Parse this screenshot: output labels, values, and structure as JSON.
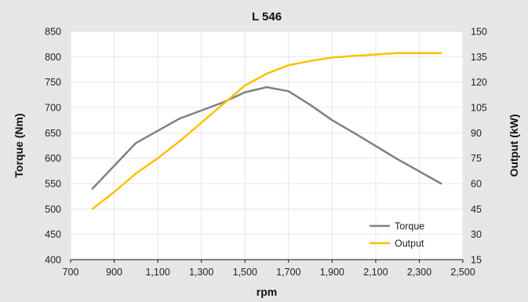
{
  "chart_data": {
    "type": "line",
    "title": "L 546",
    "xlabel": "rpm",
    "ylabel": "Torque (Nm)",
    "y2label": "Output (kW)",
    "xlim": [
      700,
      2500
    ],
    "ylim": [
      400,
      850
    ],
    "y2lim": [
      15,
      150
    ],
    "xticks": [
      700,
      900,
      1100,
      1300,
      1500,
      1700,
      1900,
      2100,
      2300,
      2500
    ],
    "xtick_labels": [
      "700",
      "900",
      "1,100",
      "1,300",
      "1,500",
      "1,700",
      "1,900",
      "2,100",
      "2,300",
      "2,500"
    ],
    "yticks": [
      400,
      450,
      500,
      550,
      600,
      650,
      700,
      750,
      800,
      850
    ],
    "ytick_labels": [
      "400",
      "450",
      "500",
      "550",
      "600",
      "650",
      "700",
      "750",
      "800",
      "850"
    ],
    "y2ticks": [
      15,
      30,
      45,
      60,
      75,
      90,
      105,
      120,
      135,
      150
    ],
    "y2tick_labels": [
      "15",
      "30",
      "45",
      "60",
      "75",
      "90",
      "105",
      "120",
      "135",
      "150"
    ],
    "grid": true,
    "legend_position": "bottom-right",
    "series": [
      {
        "name": "Torque",
        "axis": "left",
        "color": "#808080",
        "x": [
          800,
          1000,
          1200,
          1400,
          1500,
          1600,
          1700,
          1800,
          1900,
          2000,
          2200,
          2400
        ],
        "y": [
          540,
          630,
          678,
          710,
          730,
          740,
          732,
          705,
          675,
          650,
          598,
          550
        ]
      },
      {
        "name": "Output",
        "axis": "right",
        "color": "#FFC000",
        "x": [
          800,
          900,
          1000,
          1100,
          1200,
          1300,
          1400,
          1500,
          1600,
          1700,
          1800,
          1900,
          2000,
          2100,
          2200,
          2300,
          2400
        ],
        "y": [
          45,
          55,
          66,
          75,
          85,
          96,
          107,
          118,
          125,
          130,
          132.5,
          134.5,
          135.5,
          136.3,
          137.2,
          137.2,
          137.2
        ]
      }
    ]
  },
  "colors": {
    "frame_background": "#e6e6e6",
    "plot_background": "#ffffff",
    "gridline": "#e6e6e6",
    "axis_line": "#111111"
  }
}
